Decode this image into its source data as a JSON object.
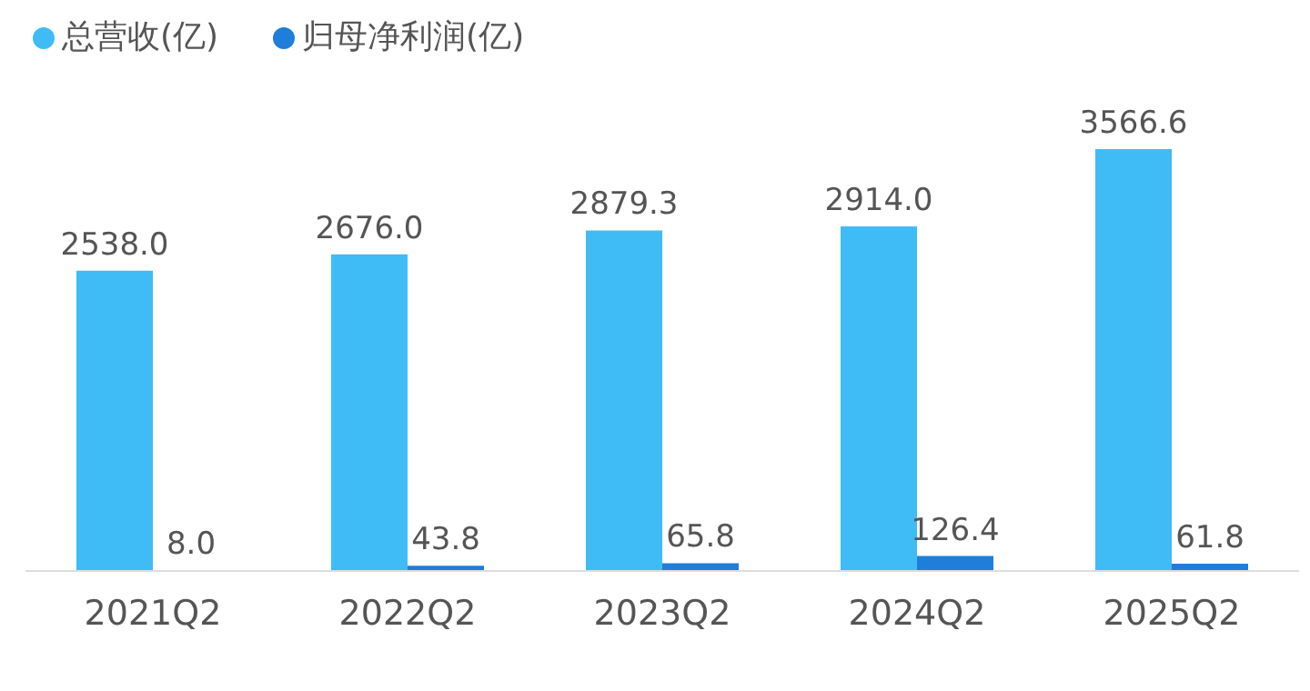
{
  "chart_data": {
    "type": "bar",
    "categories": [
      "2021Q2",
      "2022Q2",
      "2023Q2",
      "2024Q2",
      "2025Q2"
    ],
    "series": [
      {
        "name": "总营收(亿)",
        "color": "#3fbcf6",
        "values": [
          2538.0,
          2676.0,
          2879.3,
          2914.0,
          3566.6
        ],
        "value_labels": [
          "2538.0",
          "2676.0",
          "2879.3",
          "2914.0",
          "3566.6"
        ]
      },
      {
        "name": "归母净利润(亿)",
        "color": "#1e7ed9",
        "values": [
          8.0,
          43.8,
          65.8,
          126.4,
          61.8
        ],
        "value_labels": [
          "8.0",
          "43.8",
          "65.8",
          "126.4",
          "61.8"
        ]
      }
    ],
    "legend": "top left",
    "grid": false
  }
}
